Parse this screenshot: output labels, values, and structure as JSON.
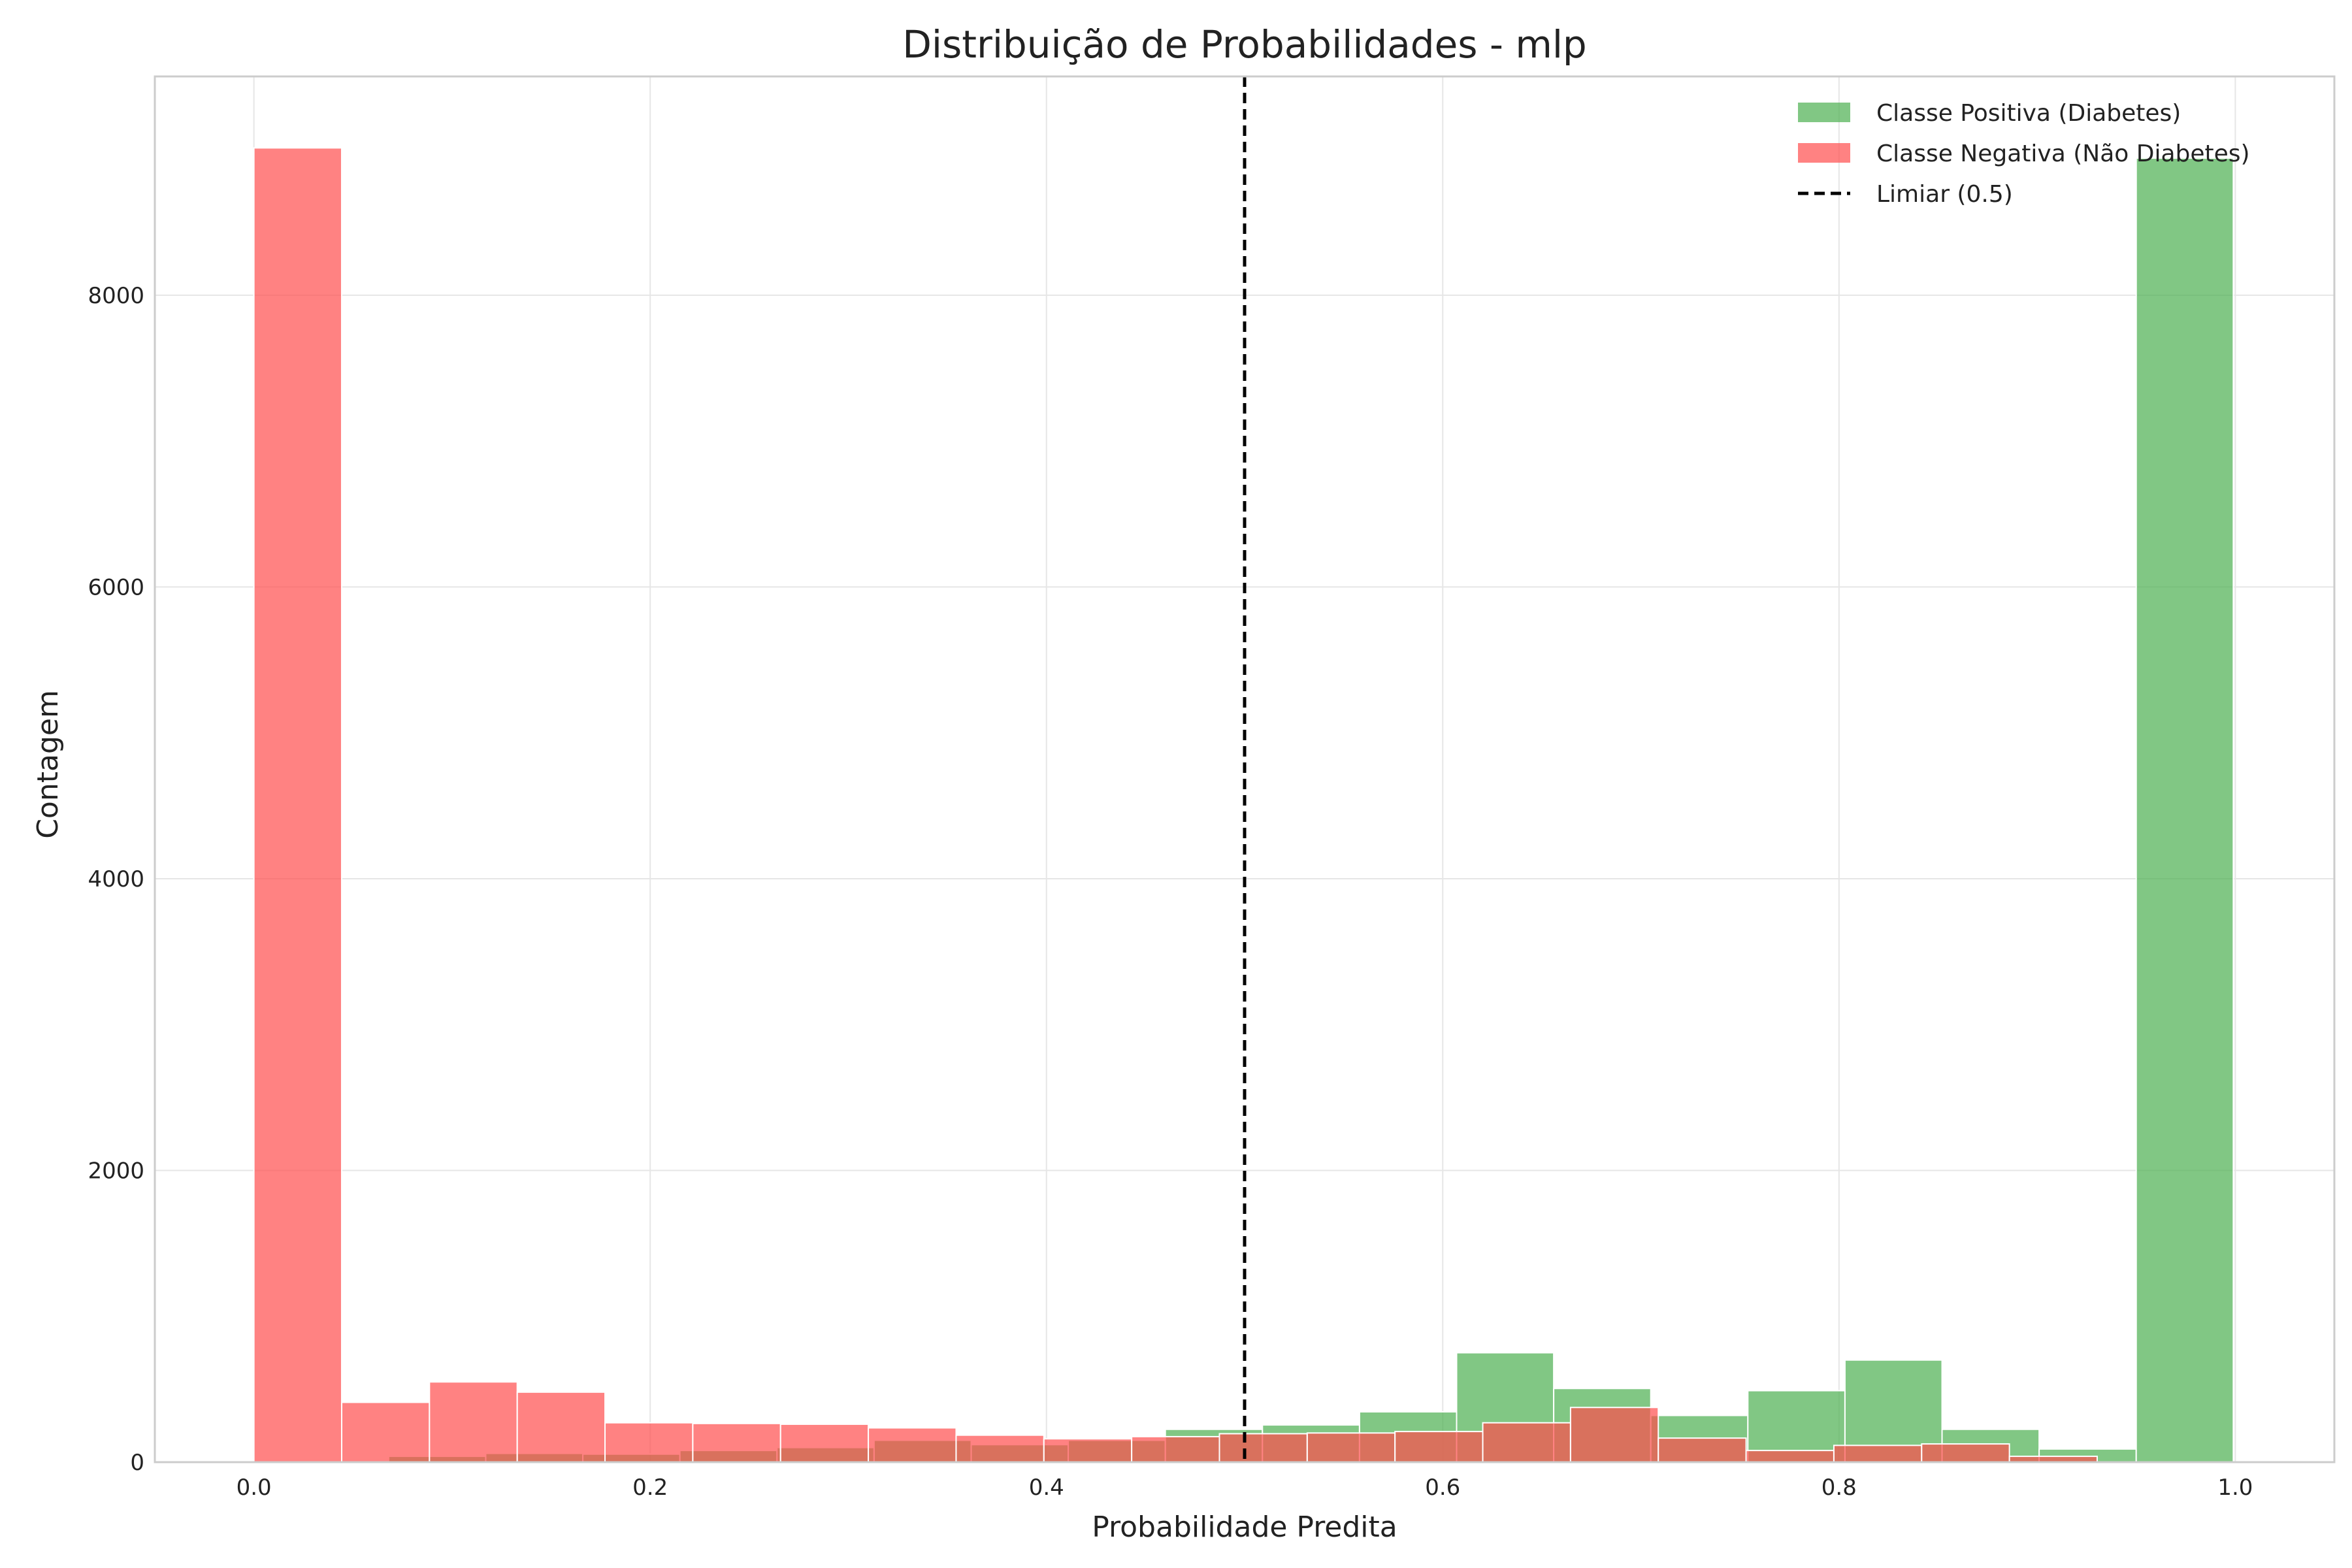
{
  "chart_data": {
    "type": "bar",
    "title": "Distribuição de Probabilidades - mlp",
    "xlabel": "Probabilidade Predita",
    "ylabel": "Contagem",
    "xlim": [
      -0.05,
      1.05
    ],
    "ylim": [
      0,
      9500
    ],
    "xticks": [
      {
        "value": 0.0,
        "label": "0.0"
      },
      {
        "value": 0.2,
        "label": "0.2"
      },
      {
        "value": 0.4,
        "label": "0.4"
      },
      {
        "value": 0.6,
        "label": "0.6"
      },
      {
        "value": 0.8,
        "label": "0.8"
      },
      {
        "value": 1.0,
        "label": "1.0"
      }
    ],
    "yticks": [
      {
        "value": 0,
        "label": "0"
      },
      {
        "value": 2000,
        "label": "2000"
      },
      {
        "value": 4000,
        "label": "4000"
      },
      {
        "value": 6000,
        "label": "6000"
      },
      {
        "value": 8000,
        "label": "8000"
      }
    ],
    "grid": true,
    "legend_position": "top-right",
    "series": [
      {
        "name": "Classe Positiva (Diabetes)",
        "color": "#4caf50",
        "opacity": 0.7,
        "bins": [
          {
            "x0": 0.068,
            "x1": 0.117,
            "count": 40
          },
          {
            "x0": 0.117,
            "x1": 0.166,
            "count": 60
          },
          {
            "x0": 0.166,
            "x1": 0.215,
            "count": 55
          },
          {
            "x0": 0.215,
            "x1": 0.264,
            "count": 80
          },
          {
            "x0": 0.264,
            "x1": 0.313,
            "count": 100
          },
          {
            "x0": 0.313,
            "x1": 0.362,
            "count": 150
          },
          {
            "x0": 0.362,
            "x1": 0.411,
            "count": 120
          },
          {
            "x0": 0.411,
            "x1": 0.46,
            "count": 150
          },
          {
            "x0": 0.46,
            "x1": 0.509,
            "count": 225
          },
          {
            "x0": 0.509,
            "x1": 0.558,
            "count": 255
          },
          {
            "x0": 0.558,
            "x1": 0.607,
            "count": 345
          },
          {
            "x0": 0.607,
            "x1": 0.656,
            "count": 750
          },
          {
            "x0": 0.656,
            "x1": 0.705,
            "count": 505
          },
          {
            "x0": 0.705,
            "x1": 0.754,
            "count": 320
          },
          {
            "x0": 0.754,
            "x1": 0.803,
            "count": 490
          },
          {
            "x0": 0.803,
            "x1": 0.852,
            "count": 700
          },
          {
            "x0": 0.852,
            "x1": 0.901,
            "count": 225
          },
          {
            "x0": 0.901,
            "x1": 0.95,
            "count": 90
          },
          {
            "x0": 0.95,
            "x1": 0.999,
            "count": 8940
          }
        ]
      },
      {
        "name": "Classe Negativa (Não Diabetes)",
        "color": "#ff4d4d",
        "opacity": 0.7,
        "bins": [
          {
            "x0": 0.0,
            "x1": 0.0443,
            "count": 9010
          },
          {
            "x0": 0.0443,
            "x1": 0.0886,
            "count": 410
          },
          {
            "x0": 0.0886,
            "x1": 0.1329,
            "count": 550
          },
          {
            "x0": 0.1329,
            "x1": 0.1772,
            "count": 480
          },
          {
            "x0": 0.1772,
            "x1": 0.2215,
            "count": 270
          },
          {
            "x0": 0.2215,
            "x1": 0.2658,
            "count": 265
          },
          {
            "x0": 0.2658,
            "x1": 0.3101,
            "count": 260
          },
          {
            "x0": 0.3101,
            "x1": 0.3544,
            "count": 235
          },
          {
            "x0": 0.3544,
            "x1": 0.3987,
            "count": 185
          },
          {
            "x0": 0.3987,
            "x1": 0.443,
            "count": 160
          },
          {
            "x0": 0.443,
            "x1": 0.4873,
            "count": 175
          },
          {
            "x0": 0.4873,
            "x1": 0.5316,
            "count": 195
          },
          {
            "x0": 0.5316,
            "x1": 0.5759,
            "count": 200
          },
          {
            "x0": 0.5759,
            "x1": 0.6202,
            "count": 210
          },
          {
            "x0": 0.6202,
            "x1": 0.6645,
            "count": 270
          },
          {
            "x0": 0.6645,
            "x1": 0.7088,
            "count": 375
          },
          {
            "x0": 0.7088,
            "x1": 0.7531,
            "count": 165
          },
          {
            "x0": 0.7531,
            "x1": 0.7974,
            "count": 80
          },
          {
            "x0": 0.7974,
            "x1": 0.8417,
            "count": 115
          },
          {
            "x0": 0.8417,
            "x1": 0.886,
            "count": 125
          },
          {
            "x0": 0.886,
            "x1": 0.9303,
            "count": 40
          }
        ]
      }
    ],
    "threshold": {
      "value": 0.5,
      "label": "Limiar (0.5)",
      "color": "#000000",
      "style": "dashed"
    }
  }
}
